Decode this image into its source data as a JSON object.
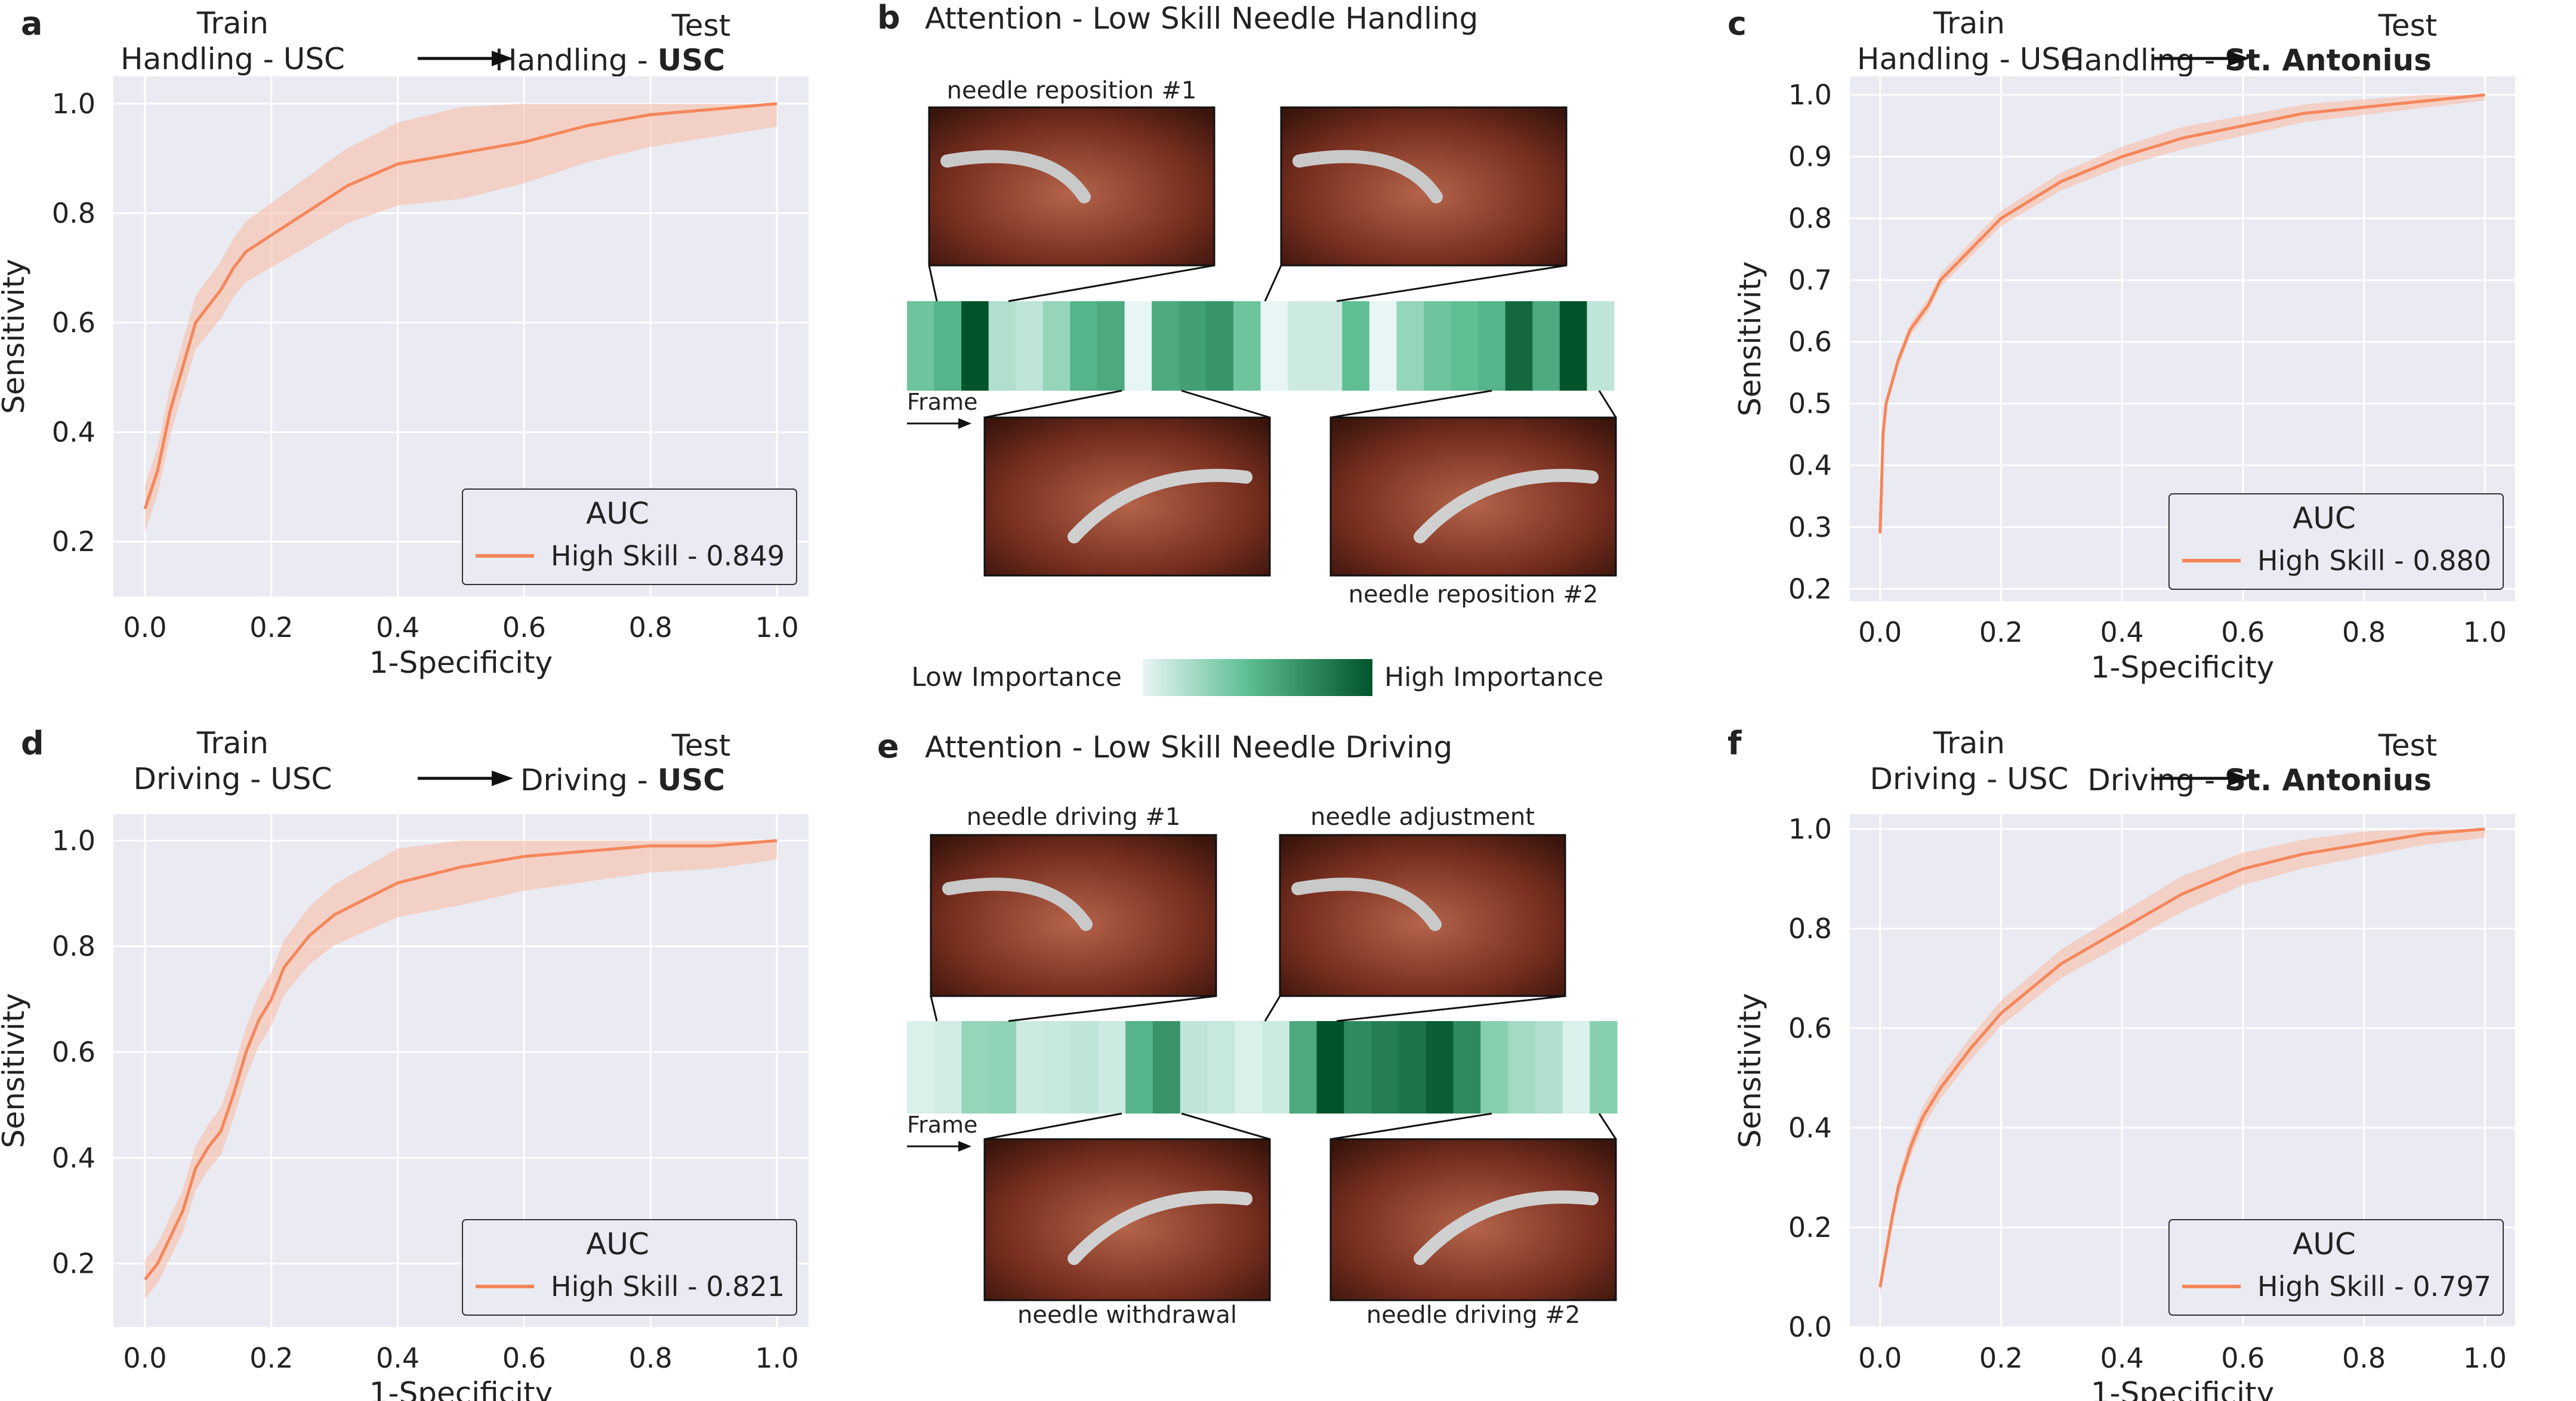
{
  "colors": {
    "bg": "#eaeaf2",
    "grid": "#ffffff",
    "line": "#f5865a",
    "band": "#f7b9a3",
    "heat_dark": "#00542a",
    "heat_light": "#e7f5f5",
    "img_a": "#5a2418",
    "img_b": "#b4644a"
  },
  "legend_title": "AUC",
  "legend_prefix": "High Skill - ",
  "arrow_text": "→",
  "x_label": "1-Specificity",
  "y_label": "Sensitivity",
  "panels": [
    {
      "label": "a",
      "train_l1": "Train",
      "train_l2": "Handling - USC",
      "test_l1": "Test",
      "test_l2_prefix": "Handling - ",
      "test_l2_bold": "USC",
      "auc": "0.849"
    },
    {
      "label": "c",
      "train_l1": "Train",
      "train_l2": "Handling - USC",
      "test_l1": "Test",
      "test_l2_prefix": "Handling - ",
      "test_l2_bold": "St. Antonius",
      "auc": "0.880"
    },
    {
      "label": "d",
      "train_l1": "Train",
      "train_l2": "Driving - USC",
      "test_l1": "Test",
      "test_l2_prefix": "Driving - ",
      "test_l2_bold": "USC",
      "auc": "0.821"
    },
    {
      "label": "f",
      "train_l1": "Train",
      "train_l2": "Driving - USC",
      "test_l1": "Test",
      "test_l2_prefix": "Driving - ",
      "test_l2_bold": "St. Antonius",
      "auc": "0.797"
    }
  ],
  "chart_data": [
    {
      "type": "line",
      "ylim": [
        0.1,
        1.05
      ],
      "xlim": [
        -0.05,
        1.05
      ],
      "x_ticks": [
        "0.0",
        "0.2",
        "0.4",
        "0.6",
        "0.8",
        "1.0"
      ],
      "y_ticks": [
        "0.2",
        "0.4",
        "0.6",
        "0.8",
        "1.0"
      ],
      "legend": "top-right? no: bottom-right",
      "series": [
        {
          "name": "High Skill - 0.849",
          "x": [
            0,
            0,
            0.02,
            0.04,
            0.06,
            0.08,
            0.1,
            0.12,
            0.14,
            0.16,
            0.2,
            0.24,
            0.28,
            0.32,
            0.36,
            0.4,
            0.5,
            0.6,
            0.7,
            0.8,
            0.9,
            1.0
          ],
          "y": [
            0.26,
            0.26,
            0.33,
            0.44,
            0.52,
            0.6,
            0.63,
            0.66,
            0.7,
            0.73,
            0.76,
            0.79,
            0.82,
            0.85,
            0.87,
            0.89,
            0.91,
            0.93,
            0.96,
            0.98,
            0.99,
            1.0
          ],
          "band": 0.07
        }
      ]
    },
    {
      "type": "line",
      "ylim": [
        0.18,
        1.03
      ],
      "xlim": [
        -0.05,
        1.05
      ],
      "x_ticks": [
        "0.0",
        "0.2",
        "0.4",
        "0.6",
        "0.8",
        "1.0"
      ],
      "y_ticks": [
        "0.2",
        "0.3",
        "0.4",
        "0.5",
        "0.6",
        "0.7",
        "0.8",
        "0.9",
        "1.0"
      ],
      "legend": "bottom-right",
      "series": [
        {
          "name": "High Skill - 0.880",
          "x": [
            0,
            0,
            0.005,
            0.01,
            0.03,
            0.05,
            0.08,
            0.1,
            0.15,
            0.2,
            0.3,
            0.4,
            0.5,
            0.6,
            0.7,
            0.8,
            0.9,
            1.0
          ],
          "y": [
            0.29,
            0.29,
            0.45,
            0.5,
            0.57,
            0.62,
            0.66,
            0.7,
            0.75,
            0.8,
            0.86,
            0.9,
            0.93,
            0.95,
            0.97,
            0.98,
            0.99,
            1.0
          ],
          "band": 0.015
        }
      ]
    },
    {
      "type": "line",
      "ylim": [
        0.08,
        1.05
      ],
      "xlim": [
        -0.05,
        1.05
      ],
      "x_ticks": [
        "0.0",
        "0.2",
        "0.4",
        "0.6",
        "0.8",
        "1.0"
      ],
      "y_ticks": [
        "0.2",
        "0.4",
        "0.6",
        "0.8",
        "1.0"
      ],
      "legend": "bottom-right",
      "series": [
        {
          "name": "High Skill - 0.821",
          "x": [
            0,
            0,
            0.02,
            0.04,
            0.06,
            0.08,
            0.1,
            0.12,
            0.14,
            0.16,
            0.18,
            0.2,
            0.22,
            0.26,
            0.3,
            0.35,
            0.4,
            0.5,
            0.6,
            0.7,
            0.8,
            0.9,
            1.0
          ],
          "y": [
            0.17,
            0.17,
            0.2,
            0.25,
            0.3,
            0.38,
            0.42,
            0.45,
            0.52,
            0.6,
            0.66,
            0.7,
            0.76,
            0.82,
            0.86,
            0.89,
            0.92,
            0.95,
            0.97,
            0.98,
            0.99,
            0.99,
            1.0
          ],
          "band": 0.06
        }
      ]
    },
    {
      "type": "line",
      "ylim": [
        0,
        1.03
      ],
      "xlim": [
        -0.05,
        1.05
      ],
      "x_ticks": [
        "0.0",
        "0.2",
        "0.4",
        "0.6",
        "0.8",
        "1.0"
      ],
      "y_ticks": [
        "0.0",
        "0.2",
        "0.4",
        "0.6",
        "0.8",
        "1.0"
      ],
      "legend": "bottom-right",
      "series": [
        {
          "name": "High Skill - 0.797",
          "x": [
            0,
            0,
            0.01,
            0.02,
            0.03,
            0.05,
            0.07,
            0.1,
            0.15,
            0.2,
            0.3,
            0.4,
            0.5,
            0.6,
            0.7,
            0.8,
            0.9,
            1.0
          ],
          "y": [
            0.08,
            0.08,
            0.15,
            0.22,
            0.28,
            0.36,
            0.42,
            0.48,
            0.56,
            0.63,
            0.73,
            0.8,
            0.87,
            0.92,
            0.95,
            0.97,
            0.99,
            1.0
          ],
          "band": 0.03
        }
      ]
    }
  ],
  "attention": [
    {
      "label": "b",
      "title": "Attention - Low Skill Needle Handling",
      "top_labels": [
        "needle reposition #1",
        ""
      ],
      "bottom_labels": [
        "",
        "needle reposition #2"
      ],
      "frame_label": "Frame",
      "cells": [
        0.45,
        0.55,
        1.0,
        0.2,
        0.15,
        0.3,
        0.55,
        0.6,
        0.0,
        0.6,
        0.65,
        0.7,
        0.45,
        0.0,
        0.1,
        0.1,
        0.5,
        0.0,
        0.3,
        0.45,
        0.5,
        0.55,
        0.9,
        0.6,
        1.0,
        0.15
      ]
    },
    {
      "label": "e",
      "title": "Attention - Low Skill Needle Driving",
      "top_labels": [
        "needle driving #1",
        "needle adjustment"
      ],
      "bottom_labels": [
        "needle withdrawal",
        "needle driving #2"
      ],
      "frame_label": "Frame",
      "cells": [
        0.05,
        0.08,
        0.3,
        0.32,
        0.1,
        0.12,
        0.15,
        0.1,
        0.55,
        0.7,
        0.15,
        0.12,
        0.05,
        0.1,
        0.6,
        1.0,
        0.75,
        0.8,
        0.85,
        0.95,
        0.75,
        0.35,
        0.25,
        0.2,
        0.05,
        0.35
      ]
    }
  ],
  "importance": {
    "low": "Low Importance",
    "high": "High Importance"
  }
}
